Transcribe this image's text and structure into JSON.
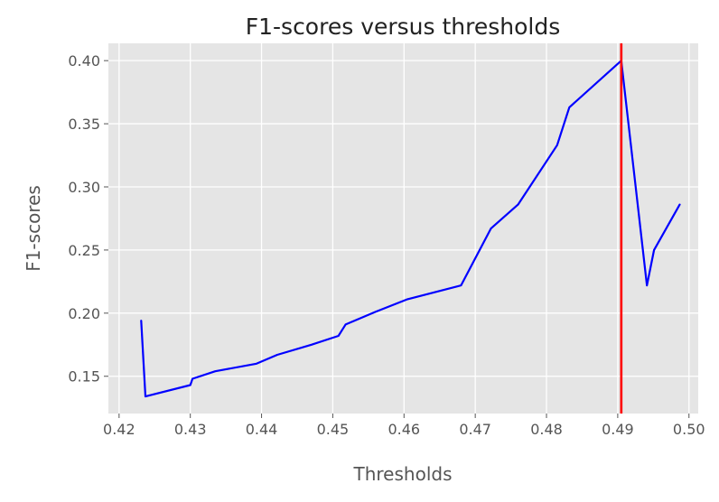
{
  "chart_data": {
    "type": "line",
    "title": "F1-scores versus thresholds",
    "xlabel": "Thresholds",
    "ylabel": "F1-scores",
    "xlim": [
      0.4185,
      0.5013
    ],
    "ylim": [
      0.1205,
      0.4137
    ],
    "xticks": [
      0.42,
      0.43,
      0.44,
      0.45,
      0.46,
      0.47,
      0.48,
      0.49,
      0.5
    ],
    "xtick_labels": [
      "0.42",
      "0.43",
      "0.44",
      "0.45",
      "0.46",
      "0.47",
      "0.48",
      "0.49",
      "0.50"
    ],
    "yticks": [
      0.15,
      0.2,
      0.25,
      0.3,
      0.35,
      0.4
    ],
    "ytick_labels": [
      "0.15",
      "0.20",
      "0.25",
      "0.30",
      "0.35",
      "0.40"
    ],
    "grid": true,
    "background_color": "#e5e5e5",
    "grid_color": "#ffffff",
    "series": [
      {
        "color": "#0000ff",
        "x": [
          0.4231,
          0.4237,
          0.43,
          0.4303,
          0.4335,
          0.4393,
          0.4422,
          0.447,
          0.4508,
          0.4518,
          0.456,
          0.4605,
          0.468,
          0.4722,
          0.476,
          0.4815,
          0.4832,
          0.4905,
          0.4941,
          0.4951,
          0.4987
        ],
        "y": [
          0.194,
          0.134,
          0.143,
          0.148,
          0.154,
          0.16,
          0.167,
          0.175,
          0.182,
          0.191,
          0.201,
          0.211,
          0.222,
          0.267,
          0.286,
          0.333,
          0.363,
          0.4,
          0.222,
          0.25,
          0.286
        ]
      }
    ],
    "vline": {
      "x": 0.4905,
      "color": "#ff0000"
    }
  }
}
